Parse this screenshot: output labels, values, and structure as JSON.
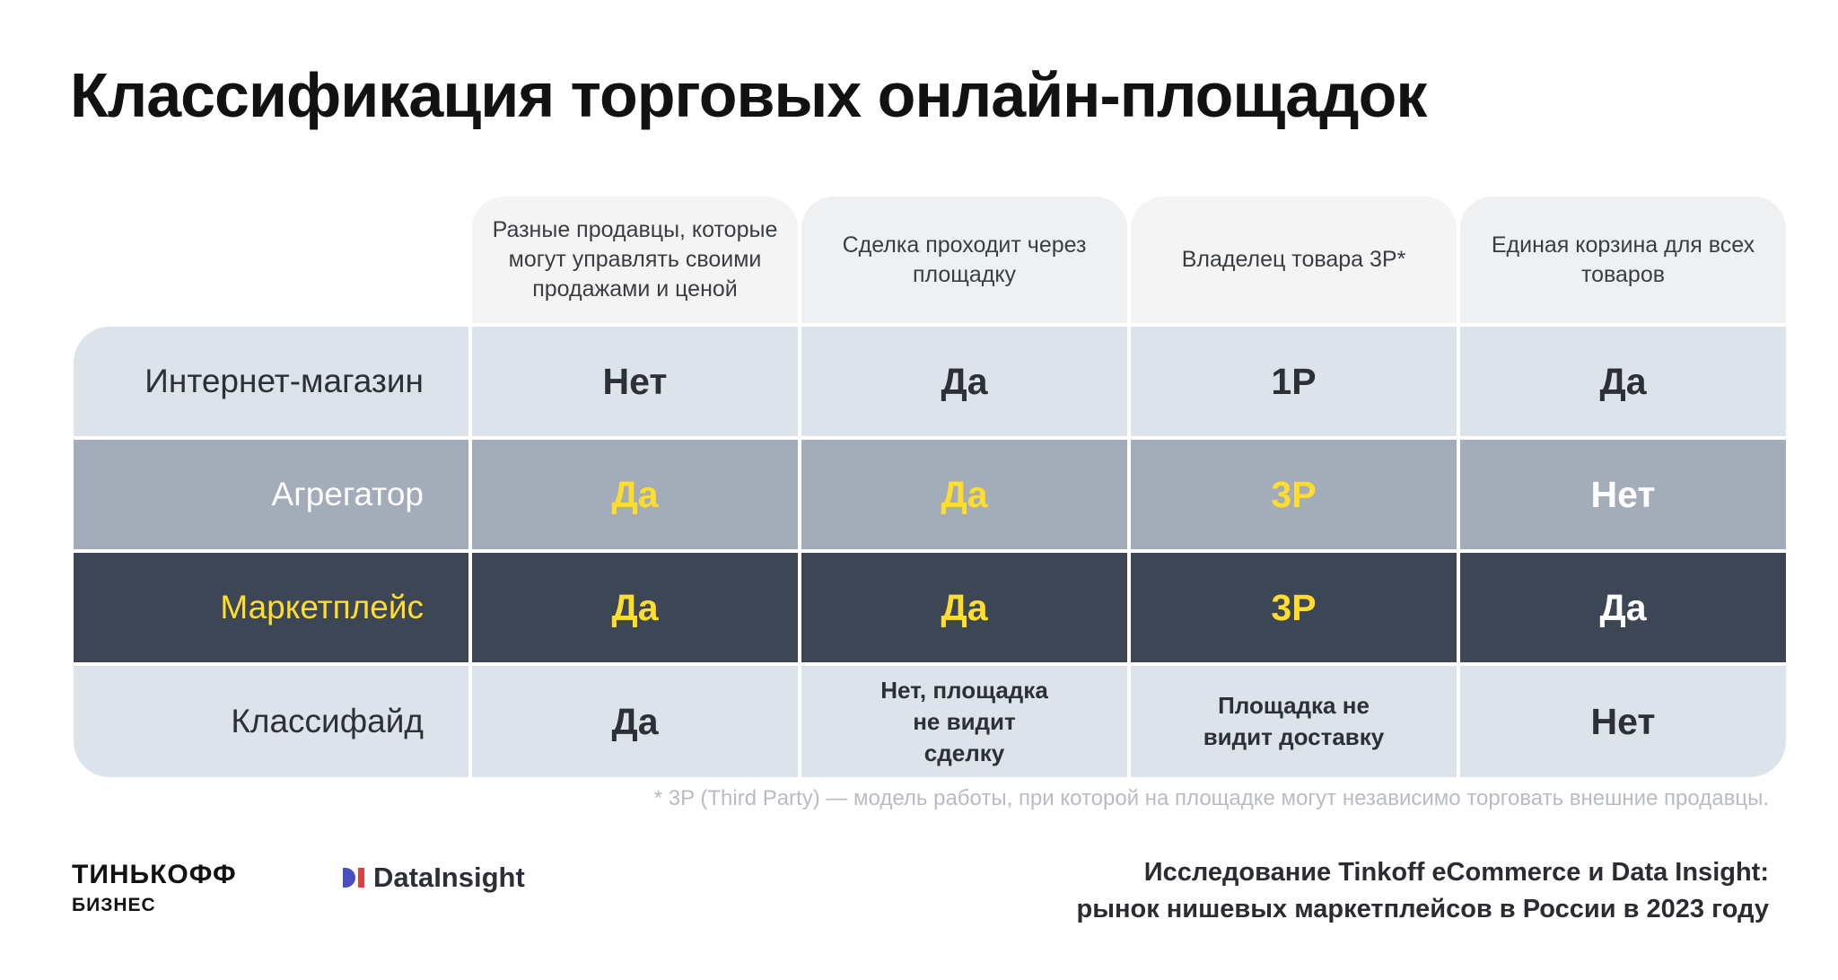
{
  "title": "Классификация торговых онлайн-площадок",
  "table": {
    "headers": [
      "Разные продавцы, которые могут управлять своими продажами и ценой",
      "Сделка проходит через площадку",
      "Владелец товара 3P*",
      "Единая корзина для всех товаров"
    ],
    "rows": [
      {
        "label": "Интернет-магазин",
        "cells": [
          "Нет",
          "Да",
          "1P",
          "Да"
        ]
      },
      {
        "label": "Агрегатор",
        "cells": [
          "Да",
          "Да",
          "3P",
          "Нет"
        ]
      },
      {
        "label": "Маркетплейс",
        "cells": [
          "Да",
          "Да",
          "3P",
          "Да"
        ]
      },
      {
        "label": "Классифайд",
        "cells": [
          "Да",
          "Нет, площадка не видит сделку",
          "Площадка не видит доставку",
          "Нет"
        ]
      }
    ]
  },
  "footnote": "* 3P (Third Party) — модель работы, при которой на площадке могут независимо торговать внешние продавцы.",
  "logos": {
    "tinkoff_main": "ТИНЬКОФФ",
    "tinkoff_sub": "БИЗНЕС",
    "datainsight": "DataInsight"
  },
  "caption": {
    "line1": "Исследование Tinkoff eCommerce и Data Insight:",
    "line2": "рынок нишевых маркетплейсов в России в 2023 году"
  },
  "colors": {
    "accent_yellow": "#ffdd2d",
    "row_light": "#dde3eb",
    "row_mid": "#a3acb9",
    "row_dark": "#3d4655"
  }
}
